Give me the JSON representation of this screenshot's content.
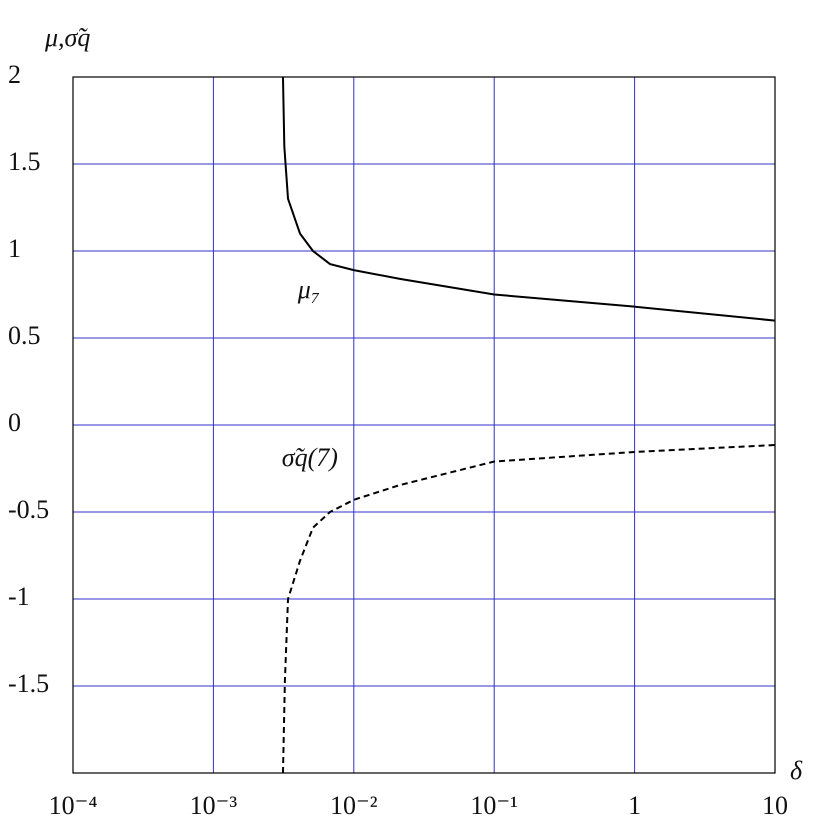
{
  "chart_data": {
    "type": "line",
    "x_label": "δ",
    "y_label": "μ,σ̃q",
    "x_log": true,
    "grid": true,
    "grid_color": "#3030c8",
    "xlim": [
      0.0001,
      10
    ],
    "ylim": [
      -2,
      2
    ],
    "xticks": [
      {
        "value": 0.0001,
        "label": "10⁻⁴"
      },
      {
        "value": 0.001,
        "label": "10⁻³"
      },
      {
        "value": 0.01,
        "label": "10⁻²"
      },
      {
        "value": 0.1,
        "label": "10⁻¹"
      },
      1,
      10
    ],
    "yticks": [
      -1.5,
      -1,
      -0.5,
      0,
      0.5,
      1,
      1.5,
      2
    ],
    "series": [
      {
        "name": "μ₇",
        "color": "#000000",
        "dashed": false,
        "x": [
          0.00313,
          0.0032,
          0.0034,
          0.00414,
          0.00512,
          0.00677,
          0.01,
          0.0213,
          0.1,
          1,
          10
        ],
        "values": [
          2.0,
          1.6,
          1.3,
          1.1,
          1.0,
          0.925,
          0.89,
          0.84,
          0.75,
          0.68,
          0.6
        ]
      },
      {
        "name": "σ̃q(7)",
        "color": "#000000",
        "dashed": true,
        "x": [
          0.00313,
          0.00323,
          0.0034,
          0.00414,
          0.00512,
          0.00677,
          0.01,
          0.0213,
          0.1,
          1,
          10
        ],
        "values": [
          -2.0,
          -1.47,
          -1.0,
          -0.78,
          -0.59,
          -0.5,
          -0.43,
          -0.345,
          -0.21,
          -0.155,
          -0.115
        ]
      }
    ]
  }
}
